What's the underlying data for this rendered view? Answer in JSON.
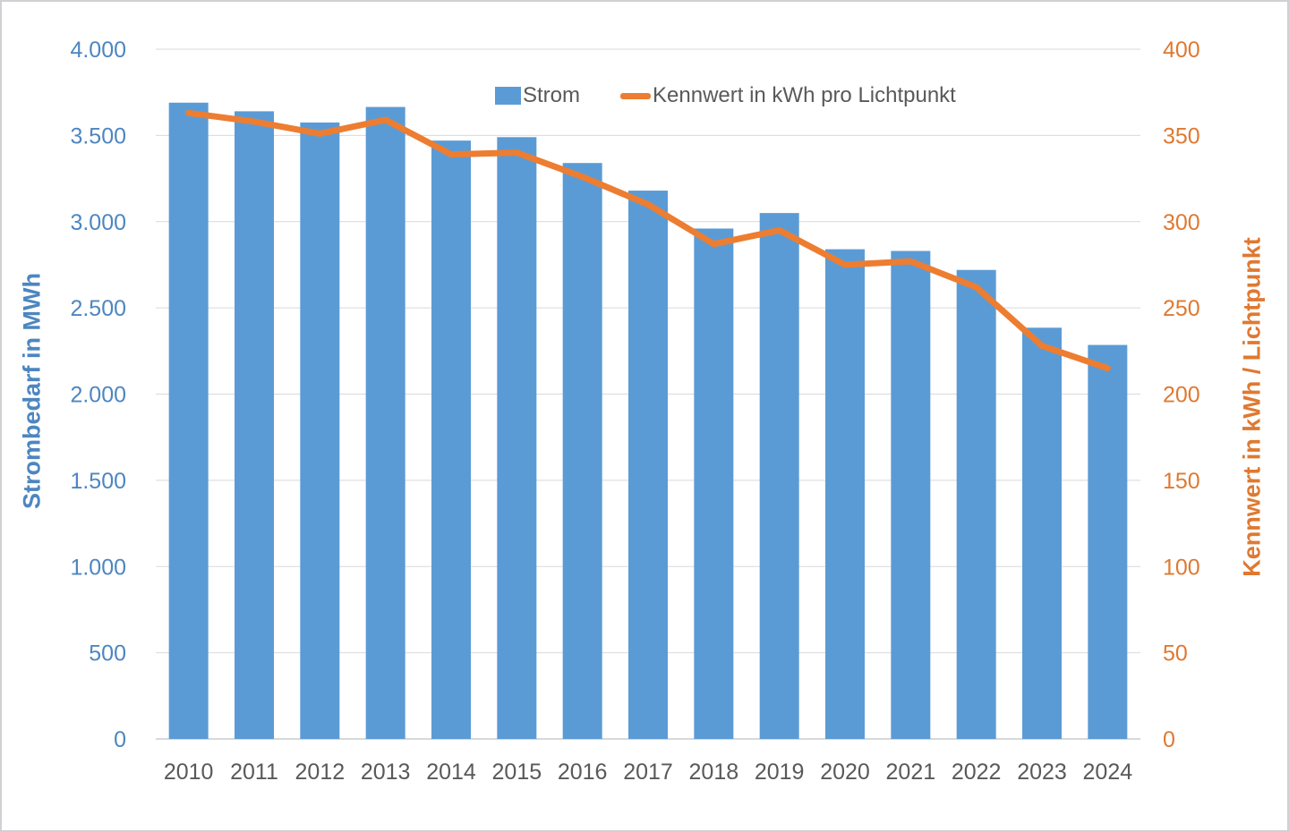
{
  "page": {
    "background": "#ffffff",
    "border_color": "#cfd1d4"
  },
  "legend": {
    "strom_label": "Strom",
    "kennwert_label": "Kennwert in kWh pro Lichtpunkt",
    "text_color": "#595959"
  },
  "chart_data": {
    "type": "bar",
    "subtype": "combo-bar-line-dual-axis",
    "categories": [
      "2010",
      "2011",
      "2012",
      "2013",
      "2014",
      "2015",
      "2016",
      "2017",
      "2018",
      "2019",
      "2020",
      "2021",
      "2022",
      "2023",
      "2024"
    ],
    "series": [
      {
        "name": "Strom",
        "type": "bar",
        "axis": "left",
        "color": "#5B9BD5",
        "values": [
          3690,
          3640,
          3575,
          3665,
          3470,
          3490,
          3340,
          3180,
          2960,
          3050,
          2840,
          2830,
          2720,
          2385,
          2285
        ]
      },
      {
        "name": "Kennwert in kWh pro Lichtpunkt",
        "type": "line",
        "axis": "right",
        "color": "#ED7D31",
        "values": [
          363,
          358,
          351,
          359,
          339,
          340,
          326,
          310,
          287,
          295,
          275,
          277,
          262,
          228,
          215
        ]
      }
    ],
    "title": "",
    "xlabel": "",
    "ylabel_left": "Strombedarf in MWh",
    "ylabel_right": "Kennwert in kWh / Lichtpunkt",
    "left_axis": {
      "min": 0,
      "max": 4000,
      "step": 500,
      "tick_labels": [
        "0",
        "500",
        "1.000",
        "1.500",
        "2.000",
        "2.500",
        "3.000",
        "3.500",
        "4.000"
      ],
      "color": "#4D86C0"
    },
    "right_axis": {
      "min": 0,
      "max": 400,
      "step": 50,
      "tick_labels": [
        "0",
        "50",
        "100",
        "150",
        "200",
        "250",
        "300",
        "350",
        "400"
      ],
      "color": "#DF7931"
    },
    "x_axis": {
      "color": "#595959"
    },
    "grid": true,
    "gridline_color": "#D9D9D9",
    "baseline_color": "#C8CBCE",
    "legend_position": "top",
    "line_width": 7,
    "bar_fraction": 0.6
  }
}
